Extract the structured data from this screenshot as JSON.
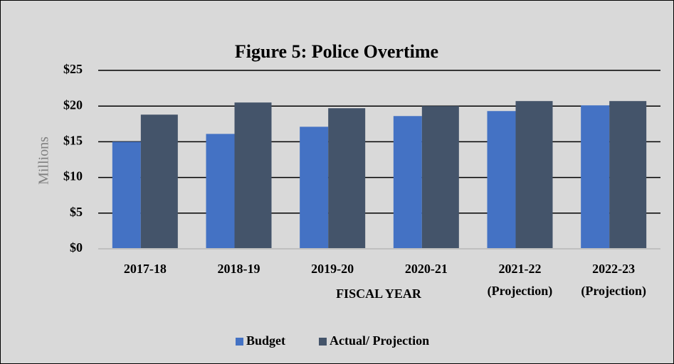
{
  "chart_data": {
    "type": "bar",
    "title": "Figure 5: Police Overtime",
    "x_label": "FISCAL YEAR",
    "y_label": "Millions",
    "categories": [
      "2017-18",
      "2018-19",
      "2019-20",
      "2020-21",
      "2021-22 (Projection)",
      "2022-23 (Projection)"
    ],
    "series": [
      {
        "name": "Budget",
        "color": "#4472c4",
        "values": [
          15.0,
          16.1,
          17.1,
          18.6,
          19.3,
          20.1
        ]
      },
      {
        "name": "Actual/ Projection",
        "color": "#44546a",
        "values": [
          18.8,
          20.5,
          19.7,
          20.0,
          20.7,
          20.7
        ]
      }
    ],
    "ylim": [
      0,
      25
    ],
    "yticks": [
      {
        "value": 0,
        "label": "$0"
      },
      {
        "value": 5,
        "label": "$5"
      },
      {
        "value": 10,
        "label": "$10"
      },
      {
        "value": 15,
        "label": "$15"
      },
      {
        "value": 20,
        "label": "$20"
      },
      {
        "value": 25,
        "label": "$25"
      }
    ],
    "grid": true,
    "legend": "bottom"
  }
}
